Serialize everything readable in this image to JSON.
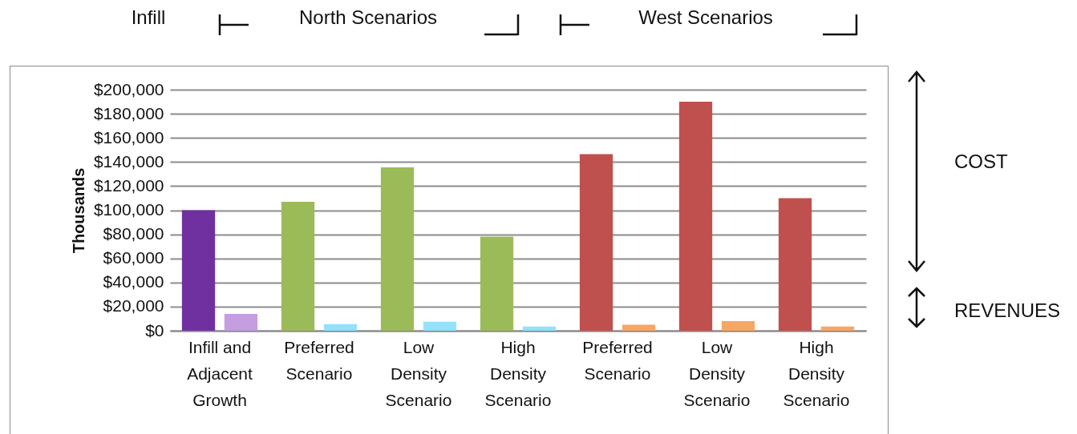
{
  "chart_data": {
    "type": "bar",
    "categories": [
      "Infill and Adjacent Growth",
      "Preferred Scenario",
      "Low Density Scenario",
      "High Density Scenario",
      "Preferred Scenario",
      "Low Density Scenario",
      "High Density Scenario"
    ],
    "series": [
      {
        "colors": [
          "#7030a0",
          "#9bbb59",
          "#9bbb59",
          "#9bbb59",
          "#c0504d",
          "#c0504d",
          "#c0504d"
        ],
        "values": [
          100000,
          107000,
          135500,
          78000,
          146500,
          190000,
          110000
        ]
      },
      {
        "colors": [
          "#c49ee0",
          "#93e1fb",
          "#93e1fb",
          "#93e1fb",
          "#f8a664",
          "#f8a664",
          "#f8a664"
        ],
        "values": [
          14000,
          5500,
          7500,
          3500,
          5000,
          8000,
          3500
        ]
      }
    ],
    "ylabel": "Thousands",
    "ylim": [
      0,
      200000
    ],
    "yticks": [
      {
        "value": 0,
        "label": "$0"
      },
      {
        "value": 20000,
        "label": "$20,000"
      },
      {
        "value": 40000,
        "label": "$40,000"
      },
      {
        "value": 60000,
        "label": "$60,000"
      },
      {
        "value": 80000,
        "label": "$80,000"
      },
      {
        "value": 100000,
        "label": "$100,000"
      },
      {
        "value": 120000,
        "label": "$120,000"
      },
      {
        "value": 140000,
        "label": "$140,000"
      },
      {
        "value": 160000,
        "label": "$160,000"
      },
      {
        "value": 180000,
        "label": "$180,000"
      },
      {
        "value": 200000,
        "label": "$200,000"
      }
    ],
    "grid": "y",
    "annotations": [
      "Infill",
      "North Scenarios",
      "West Scenarios",
      "COST",
      "REVENUES"
    ]
  }
}
